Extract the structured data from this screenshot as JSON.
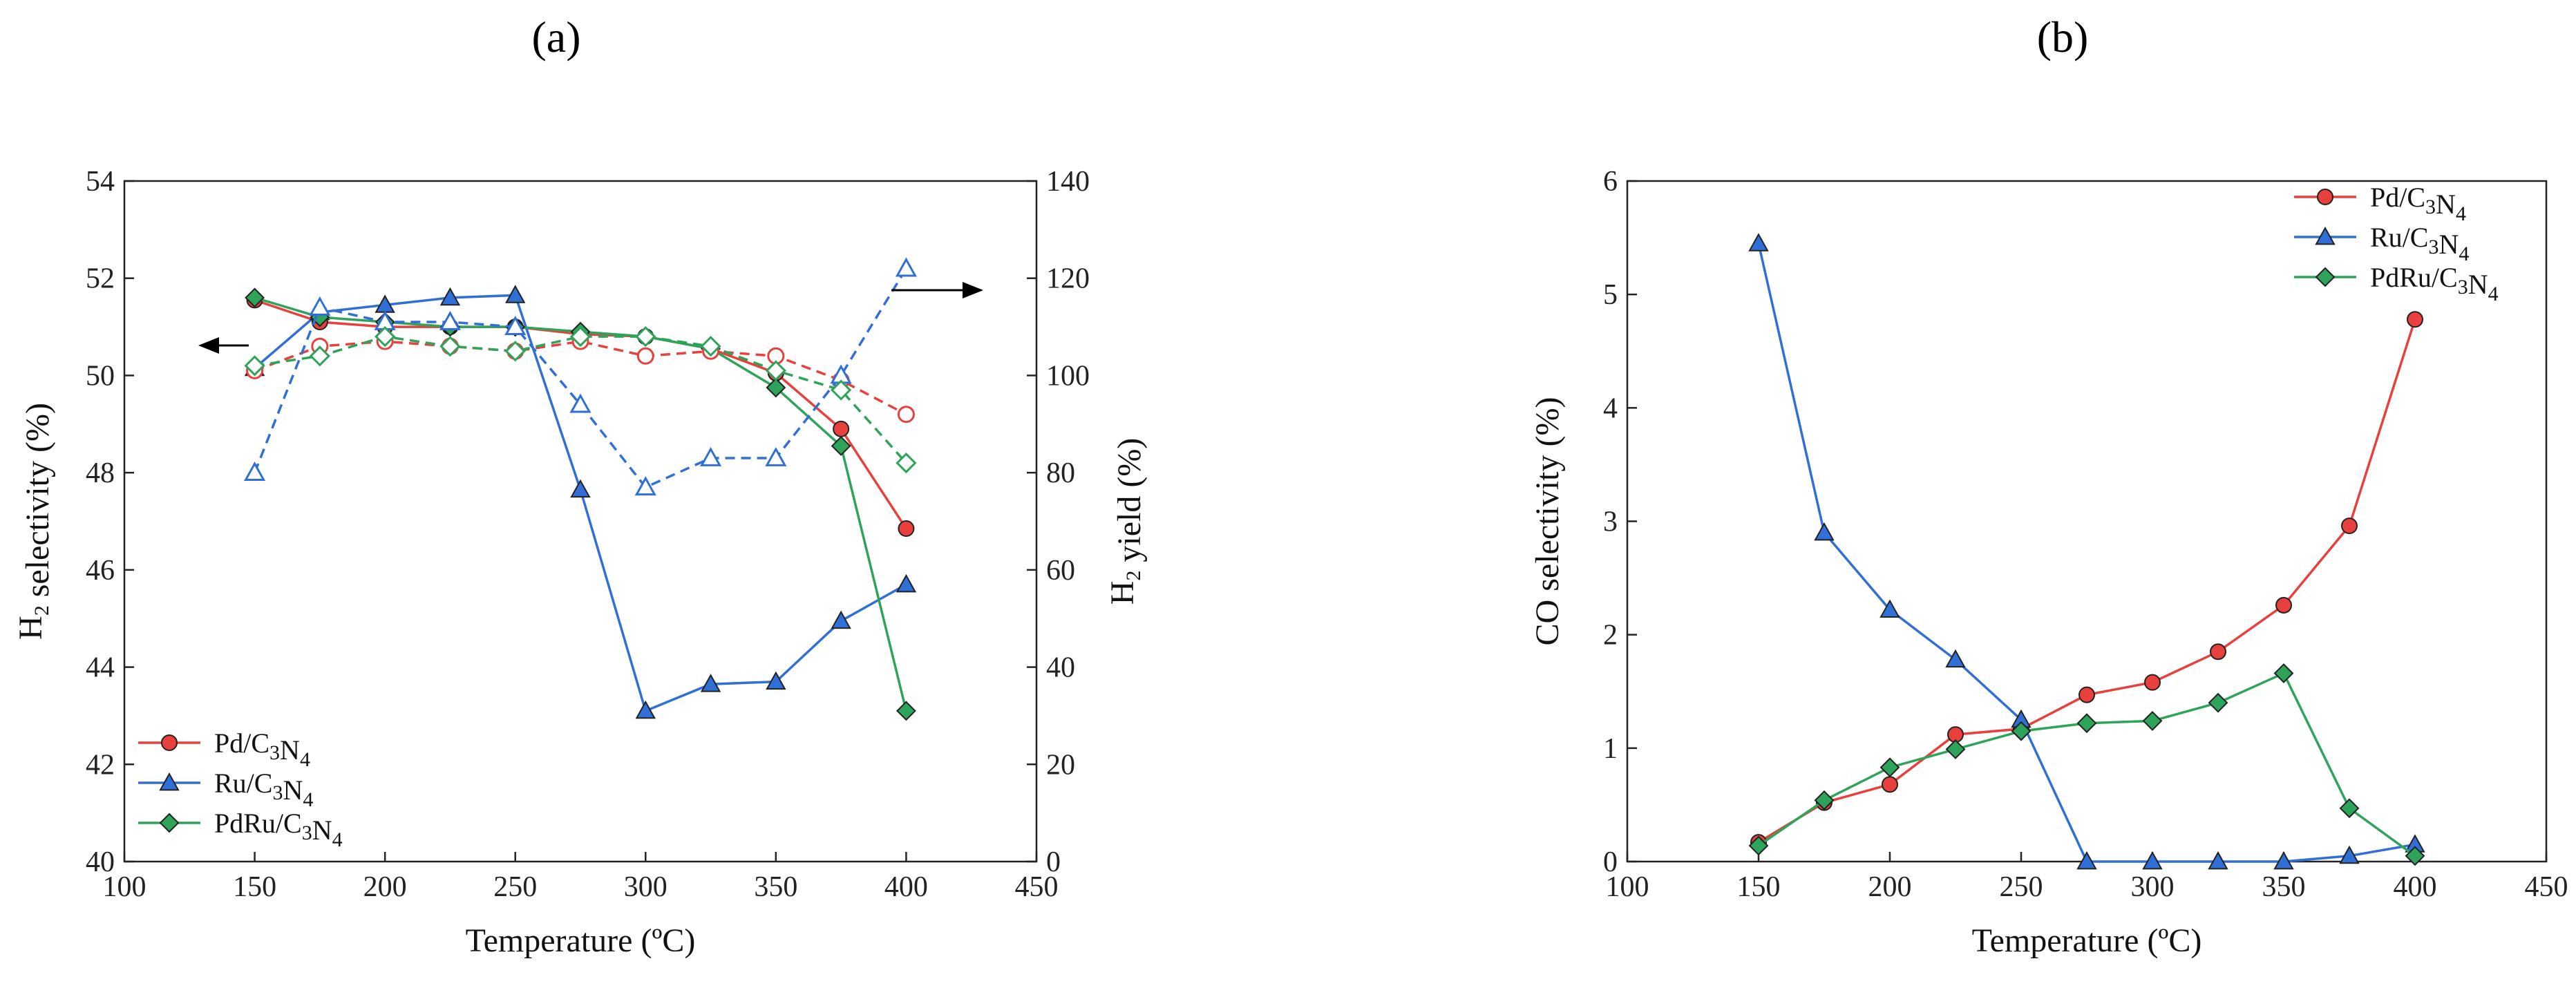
{
  "panels": {
    "a": {
      "label": "(a)"
    },
    "b": {
      "label": "(b)"
    }
  },
  "chart_data": [
    {
      "id": "a",
      "type": "line",
      "title": "(a)",
      "xlabel": "Temperature (ºC)",
      "ylabel": "H2 selectivity (%)",
      "ylabel_right": "H2 yield (%)",
      "xlim": [
        100,
        450
      ],
      "ylim": [
        40,
        54
      ],
      "ylim_right": [
        0,
        140
      ],
      "xticks": [
        100,
        150,
        200,
        250,
        300,
        350,
        400,
        450
      ],
      "yticks": [
        40,
        42,
        44,
        46,
        48,
        50,
        52,
        54
      ],
      "yticks_right": [
        0,
        20,
        40,
        60,
        80,
        100,
        120,
        140
      ],
      "legend_position": "bottom-left",
      "annotations": [
        "arrow pointing left to selectivity axis",
        "arrow pointing right to yield axis"
      ],
      "x": [
        150,
        175,
        200,
        225,
        250,
        275,
        300,
        325,
        350,
        375,
        400
      ],
      "series": [
        {
          "name": "Pd/C3N4",
          "color": "#e8403c",
          "marker": "circle",
          "axis": "left",
          "style": "solid",
          "filled": true,
          "values": [
            51.55,
            51.1,
            51.0,
            51.0,
            51.0,
            50.85,
            50.8,
            50.55,
            50.05,
            48.9,
            46.85
          ]
        },
        {
          "name": "Ru/C3N4",
          "color": "#2f6fd6",
          "marker": "triangle",
          "axis": "left",
          "style": "solid",
          "filled": true,
          "values": [
            50.15,
            51.3,
            51.45,
            51.6,
            51.65,
            47.65,
            43.1,
            43.65,
            43.7,
            44.95,
            45.7
          ]
        },
        {
          "name": "PdRu/C3N4",
          "color": "#2ea35a",
          "marker": "diamond",
          "axis": "left",
          "style": "solid",
          "filled": true,
          "values": [
            51.6,
            51.2,
            51.1,
            51.0,
            51.0,
            50.9,
            50.8,
            50.55,
            49.75,
            48.55,
            43.1
          ]
        },
        {
          "name": "Pd/C3N4 yield",
          "color": "#e8403c",
          "marker": "circle",
          "axis": "right",
          "style": "dashed",
          "filled": false,
          "in_legend": false,
          "values": [
            101,
            106,
            107,
            106,
            105,
            107,
            104,
            105,
            104,
            99,
            92
          ]
        },
        {
          "name": "Ru/C3N4 yield",
          "color": "#2f6fd6",
          "marker": "triangle",
          "axis": "right",
          "style": "dashed",
          "filled": false,
          "in_legend": false,
          "values": [
            80,
            114,
            111,
            111,
            110,
            94,
            77,
            83,
            83,
            100,
            122
          ]
        },
        {
          "name": "PdRu/C3N4 yield",
          "color": "#2ea35a",
          "marker": "diamond",
          "axis": "right",
          "style": "dashed",
          "filled": false,
          "in_legend": false,
          "values": [
            102,
            104,
            108,
            106,
            105,
            108,
            108,
            106,
            101,
            97,
            82
          ]
        }
      ]
    },
    {
      "id": "b",
      "type": "line",
      "title": "(b)",
      "xlabel": "Temperature (ºC)",
      "ylabel": "CO selectivity (%)",
      "xlim": [
        100,
        450
      ],
      "ylim": [
        0,
        6
      ],
      "xticks": [
        100,
        150,
        200,
        250,
        300,
        350,
        400,
        450
      ],
      "yticks": [
        0,
        1,
        2,
        3,
        4,
        5,
        6
      ],
      "legend_position": "top-right",
      "x": [
        150,
        175,
        200,
        225,
        250,
        275,
        300,
        325,
        350,
        375,
        400
      ],
      "series": [
        {
          "name": "Pd/C3N4",
          "color": "#e8403c",
          "marker": "circle",
          "style": "solid",
          "filled": true,
          "values": [
            0.17,
            0.52,
            0.68,
            1.12,
            1.17,
            1.47,
            1.58,
            1.85,
            2.26,
            2.96,
            4.78
          ]
        },
        {
          "name": "Ru/C3N4",
          "color": "#2f6fd6",
          "marker": "triangle",
          "style": "solid",
          "filled": true,
          "values": [
            5.45,
            2.9,
            2.22,
            1.78,
            1.25,
            0.0,
            0.0,
            0.0,
            0.0,
            0.05,
            0.15
          ]
        },
        {
          "name": "PdRu/C3N4",
          "color": "#2ea35a",
          "marker": "diamond",
          "style": "solid",
          "filled": true,
          "values": [
            0.14,
            0.54,
            0.83,
            0.99,
            1.15,
            1.22,
            1.24,
            1.4,
            1.66,
            0.47,
            0.05
          ]
        }
      ]
    }
  ]
}
